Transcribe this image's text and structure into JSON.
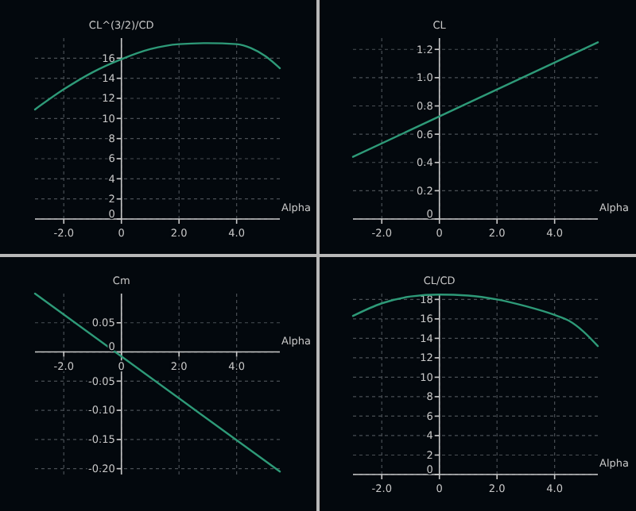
{
  "chart_data": [
    {
      "type": "line",
      "xlabel": "Alpha",
      "ylabel": "CL^(3/2)/CD",
      "x": [
        -3,
        -2,
        -1,
        0,
        1,
        2,
        3,
        4,
        4.5,
        5,
        5.5
      ],
      "series": [
        {
          "color": "#2e9a78",
          "values": [
            10.9,
            12.9,
            14.6,
            15.9,
            16.9,
            17.4,
            17.5,
            17.4,
            17.0,
            16.2,
            15.0
          ]
        }
      ],
      "xlim": [
        -3,
        5.5
      ],
      "ylim": [
        0,
        18
      ],
      "xticks": [
        {
          "value": -2,
          "label": "-2.0"
        },
        {
          "value": 0,
          "label": "0"
        },
        {
          "value": 2,
          "label": "2.0"
        },
        {
          "value": 4,
          "label": "4.0"
        }
      ],
      "yticks": [
        0,
        2,
        4,
        6,
        8,
        10,
        12,
        14,
        16
      ],
      "grid": true
    },
    {
      "type": "line",
      "xlabel": "Alpha",
      "ylabel": "CL",
      "x": [
        -3,
        5.5
      ],
      "series": [
        {
          "color": "#2e9a78",
          "values": [
            0.44,
            1.25
          ]
        }
      ],
      "xlim": [
        -3,
        5.5
      ],
      "ylim": [
        0,
        1.28
      ],
      "xticks": [
        {
          "value": -2,
          "label": "-2.0"
        },
        {
          "value": 0,
          "label": "0"
        },
        {
          "value": 2,
          "label": "2.0"
        },
        {
          "value": 4,
          "label": "4.0"
        }
      ],
      "yticks": [
        0,
        0.2,
        0.4,
        0.6,
        0.8,
        {
          "value": 1,
          "label": "1.0"
        },
        1.2
      ],
      "grid": true
    },
    {
      "type": "line",
      "xlabel": "Alpha",
      "ylabel": "Cm",
      "x": [
        -3,
        5.5
      ],
      "series": [
        {
          "color": "#2e9a78",
          "values": [
            0.1,
            -0.205
          ]
        }
      ],
      "xlim": [
        -3,
        5.5
      ],
      "ylim": [
        -0.21,
        0.1
      ],
      "xticks": [
        {
          "value": -2,
          "label": "-2.0"
        },
        {
          "value": 0,
          "label": "0"
        },
        {
          "value": 2,
          "label": "2.0"
        },
        {
          "value": 4,
          "label": "4.0"
        }
      ],
      "yticks": [
        {
          "value": -0.2,
          "label": "-0.20"
        },
        {
          "value": -0.15,
          "label": "-0.15"
        },
        {
          "value": -0.1,
          "label": "-0.10"
        },
        -0.05,
        0,
        0.05
      ],
      "grid": true
    },
    {
      "type": "line",
      "xlabel": "Alpha",
      "ylabel": "CL/CD",
      "x": [
        -3,
        -2,
        -1,
        0,
        1,
        2,
        3,
        4,
        4.5,
        5,
        5.5
      ],
      "series": [
        {
          "color": "#2e9a78",
          "values": [
            16.3,
            17.6,
            18.3,
            18.5,
            18.4,
            18.0,
            17.3,
            16.4,
            15.8,
            14.7,
            13.2
          ]
        }
      ],
      "xlim": [
        -3,
        5.5
      ],
      "ylim": [
        0,
        18.6
      ],
      "xticks": [
        {
          "value": -2,
          "label": "-2.0"
        },
        {
          "value": 0,
          "label": "0"
        },
        {
          "value": 2,
          "label": "2.0"
        },
        {
          "value": 4,
          "label": "4.0"
        }
      ],
      "yticks": [
        0,
        2,
        4,
        6,
        8,
        10,
        12,
        14,
        16,
        18
      ],
      "grid": true
    }
  ]
}
